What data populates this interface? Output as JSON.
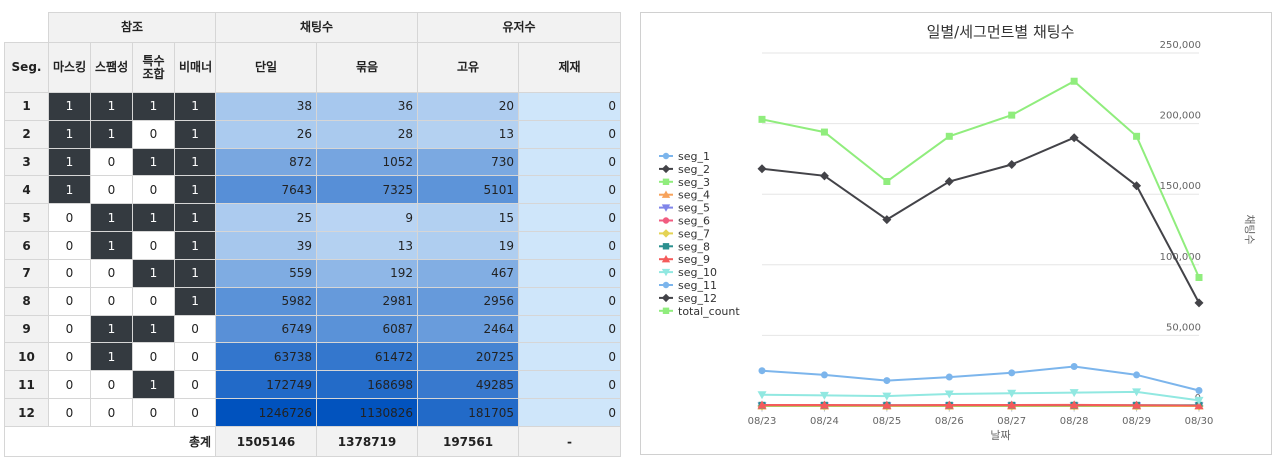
{
  "table": {
    "group_headers": [
      "참조",
      "채팅수",
      "유저수"
    ],
    "columns": {
      "seg": "Seg.",
      "masking": "마스킹",
      "spam": "스팸성",
      "special_combo": "특수\n조합",
      "non_manner": "비매너",
      "single": "단일",
      "bundle": "묶음",
      "unique": "고유",
      "sanction": "제재"
    },
    "rows": [
      {
        "seg": "1",
        "flags": [
          "1",
          "1",
          "1",
          "1"
        ],
        "single": "38",
        "bundle": "36",
        "unique": "20",
        "sanction": "0"
      },
      {
        "seg": "2",
        "flags": [
          "1",
          "1",
          "0",
          "1"
        ],
        "single": "26",
        "bundle": "28",
        "unique": "13",
        "sanction": "0"
      },
      {
        "seg": "3",
        "flags": [
          "1",
          "0",
          "1",
          "1"
        ],
        "single": "872",
        "bundle": "1052",
        "unique": "730",
        "sanction": "0"
      },
      {
        "seg": "4",
        "flags": [
          "1",
          "0",
          "0",
          "1"
        ],
        "single": "7643",
        "bundle": "7325",
        "unique": "5101",
        "sanction": "0"
      },
      {
        "seg": "5",
        "flags": [
          "0",
          "1",
          "1",
          "1"
        ],
        "single": "25",
        "bundle": "9",
        "unique": "15",
        "sanction": "0"
      },
      {
        "seg": "6",
        "flags": [
          "0",
          "1",
          "0",
          "1"
        ],
        "single": "39",
        "bundle": "13",
        "unique": "19",
        "sanction": "0"
      },
      {
        "seg": "7",
        "flags": [
          "0",
          "0",
          "1",
          "1"
        ],
        "single": "559",
        "bundle": "192",
        "unique": "467",
        "sanction": "0"
      },
      {
        "seg": "8",
        "flags": [
          "0",
          "0",
          "0",
          "1"
        ],
        "single": "5982",
        "bundle": "2981",
        "unique": "2956",
        "sanction": "0"
      },
      {
        "seg": "9",
        "flags": [
          "0",
          "1",
          "1",
          "0"
        ],
        "single": "6749",
        "bundle": "6087",
        "unique": "2464",
        "sanction": "0"
      },
      {
        "seg": "10",
        "flags": [
          "0",
          "1",
          "0",
          "0"
        ],
        "single": "63738",
        "bundle": "61472",
        "unique": "20725",
        "sanction": "0"
      },
      {
        "seg": "11",
        "flags": [
          "0",
          "0",
          "1",
          "0"
        ],
        "single": "172749",
        "bundle": "168698",
        "unique": "49285",
        "sanction": "0"
      },
      {
        "seg": "12",
        "flags": [
          "0",
          "0",
          "0",
          "0"
        ],
        "single": "1246726",
        "bundle": "1130826",
        "unique": "181705",
        "sanction": "0"
      }
    ],
    "total": {
      "label": "총계",
      "single": "1505146",
      "bundle": "1378719",
      "unique": "197561",
      "sanction": "-"
    },
    "colors": {
      "flag_on": "#343a40",
      "header_bg": "#f2f2f2",
      "sanction_bg": "#cfe6fa"
    }
  },
  "chart_data": {
    "type": "line",
    "title": "일별/세그먼트별 채팅수",
    "xlabel": "날짜",
    "ylabel": "채팅수",
    "y_axis_side": "right",
    "ylim": [
      0,
      250000
    ],
    "yticks": [
      "0",
      "50,000",
      "100,000",
      "150,000",
      "200,000",
      "250,000"
    ],
    "ytick_values": [
      0,
      50000,
      100000,
      150000,
      200000,
      250000
    ],
    "categories": [
      "08/23",
      "08/24",
      "08/25",
      "08/26",
      "08/27",
      "08/28",
      "08/29",
      "08/30"
    ],
    "grid": true,
    "legend_position": "left",
    "series": [
      {
        "name": "seg_1",
        "color": "#7cb5ec",
        "marker": "circle",
        "values": [
          0,
          0,
          0,
          0,
          0,
          0,
          0,
          0
        ]
      },
      {
        "name": "seg_2",
        "color": "#434348",
        "marker": "diamond",
        "values": [
          0,
          0,
          0,
          0,
          0,
          0,
          0,
          0
        ]
      },
      {
        "name": "seg_3",
        "color": "#90ed7d",
        "marker": "square",
        "values": [
          0,
          0,
          0,
          0,
          0,
          0,
          0,
          0
        ]
      },
      {
        "name": "seg_4",
        "color": "#f7a35c",
        "marker": "triangle",
        "values": [
          0,
          0,
          0,
          0,
          0,
          0,
          0,
          0
        ]
      },
      {
        "name": "seg_5",
        "color": "#8085e9",
        "marker": "triangle-down",
        "values": [
          0,
          0,
          0,
          0,
          0,
          0,
          0,
          0
        ]
      },
      {
        "name": "seg_6",
        "color": "#f15c80",
        "marker": "circle",
        "values": [
          0,
          0,
          0,
          0,
          0,
          0,
          0,
          0
        ]
      },
      {
        "name": "seg_7",
        "color": "#e4d354",
        "marker": "diamond",
        "values": [
          0,
          0,
          0,
          0,
          0,
          0,
          0,
          0
        ]
      },
      {
        "name": "seg_8",
        "color": "#2b908f",
        "marker": "square",
        "values": [
          500,
          500,
          500,
          500,
          500,
          500,
          500,
          500
        ]
      },
      {
        "name": "seg_9",
        "color": "#f45b5b",
        "marker": "triangle",
        "values": [
          700,
          700,
          600,
          700,
          700,
          800,
          600,
          300
        ]
      },
      {
        "name": "seg_10",
        "color": "#91e8e1",
        "marker": "triangle-down",
        "values": [
          8000,
          7500,
          7000,
          8500,
          9000,
          9500,
          10000,
          4000
        ]
      },
      {
        "name": "seg_11",
        "color": "#7cb5ec",
        "marker": "circle",
        "values": [
          25000,
          22000,
          18000,
          20500,
          23500,
          28000,
          22000,
          11000
        ]
      },
      {
        "name": "seg_12",
        "color": "#434348",
        "marker": "diamond",
        "values": [
          168000,
          163000,
          132000,
          159000,
          171000,
          190000,
          156000,
          73000
        ]
      },
      {
        "name": "total_count",
        "color": "#90ed7d",
        "marker": "square",
        "values": [
          203000,
          194000,
          159000,
          191000,
          206000,
          230000,
          191000,
          91000
        ]
      }
    ]
  }
}
